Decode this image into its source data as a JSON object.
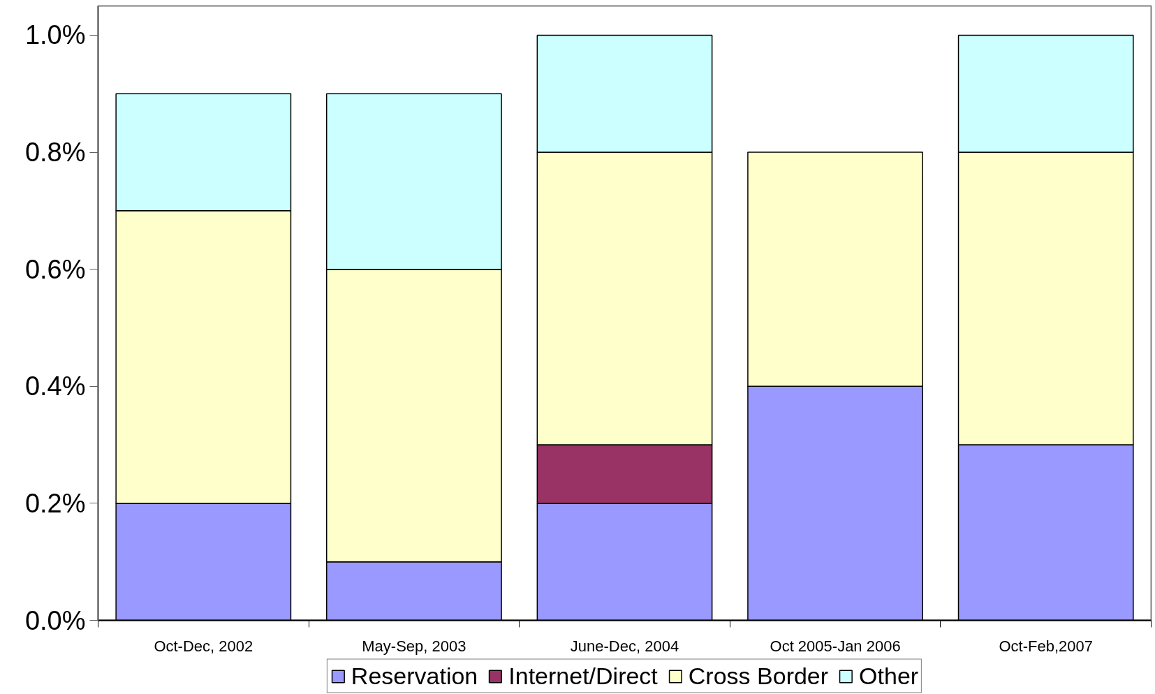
{
  "chart_data": {
    "type": "bar",
    "stacked": true,
    "categories": [
      "Oct-Dec, 2002",
      "May-Sep, 2003",
      "June-Dec, 2004",
      "Oct 2005-Jan 2006",
      "Oct-Feb,2007"
    ],
    "series": [
      {
        "name": "Reservation",
        "color": "#9999ff",
        "values": [
          0.2,
          0.1,
          0.2,
          0.4,
          0.3
        ]
      },
      {
        "name": "Internet/Direct",
        "color": "#993366",
        "values": [
          null,
          null,
          0.1,
          null,
          null
        ]
      },
      {
        "name": "Cross Border",
        "color": "#ffffcc",
        "values": [
          0.5,
          0.5,
          0.5,
          0.4,
          0.5
        ]
      },
      {
        "name": "Other",
        "color": "#ccffff",
        "values": [
          0.2,
          0.3,
          0.2,
          null,
          0.2
        ]
      }
    ],
    "ylim": [
      0,
      1.05
    ],
    "yticks": [
      {
        "value": 0,
        "label": "0.0%"
      },
      {
        "value": 0.2,
        "label": "0.2%"
      },
      {
        "value": 0.4,
        "label": "0.4%"
      },
      {
        "value": 0.6,
        "label": "0.6%"
      },
      {
        "value": 0.8,
        "label": "0.8%"
      },
      {
        "value": 1.0,
        "label": "1.0%"
      }
    ],
    "legend": "bottom"
  }
}
